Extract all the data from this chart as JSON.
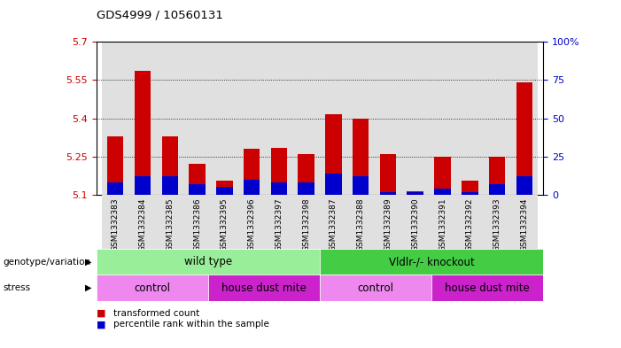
{
  "title": "GDS4999 / 10560131",
  "samples": [
    "GSM1332383",
    "GSM1332384",
    "GSM1332385",
    "GSM1332386",
    "GSM1332395",
    "GSM1332396",
    "GSM1332397",
    "GSM1332398",
    "GSM1332387",
    "GSM1332388",
    "GSM1332389",
    "GSM1332390",
    "GSM1332391",
    "GSM1332392",
    "GSM1332393",
    "GSM1332394"
  ],
  "red_values": [
    5.33,
    5.585,
    5.33,
    5.22,
    5.155,
    5.28,
    5.285,
    5.26,
    5.415,
    5.4,
    5.26,
    5.115,
    5.25,
    5.155,
    5.25,
    5.54
  ],
  "blue_percentiles": [
    8,
    12,
    12,
    7,
    5,
    10,
    8,
    8,
    14,
    12,
    2,
    2,
    4,
    2,
    7,
    12
  ],
  "ymin": 5.1,
  "ymax": 5.7,
  "yticks": [
    5.1,
    5.25,
    5.4,
    5.55,
    5.7
  ],
  "ytick_labels": [
    "5.1",
    "5.25",
    "5.4",
    "5.55",
    "5.7"
  ],
  "right_yticks": [
    0,
    25,
    50,
    75,
    100
  ],
  "right_ytick_labels": [
    "0",
    "25",
    "50",
    "75",
    "100%"
  ],
  "bar_width": 0.6,
  "red_color": "#cc0000",
  "blue_color": "#0000cc",
  "col_bg_even": "#e0e0e0",
  "col_bg_odd": "#e0e0e0",
  "plot_bg": "#ffffff",
  "genotype_groups": [
    {
      "label": "wild type",
      "start": 0,
      "end": 8,
      "color": "#99ee99"
    },
    {
      "label": "Vldlr-/- knockout",
      "start": 8,
      "end": 16,
      "color": "#44cc44"
    }
  ],
  "stress_groups": [
    {
      "label": "control",
      "start": 0,
      "end": 4,
      "color": "#ee88ee"
    },
    {
      "label": "house dust mite",
      "start": 4,
      "end": 8,
      "color": "#cc22cc"
    },
    {
      "label": "control",
      "start": 8,
      "end": 12,
      "color": "#ee88ee"
    },
    {
      "label": "house dust mite",
      "start": 12,
      "end": 16,
      "color": "#cc22cc"
    }
  ],
  "genotype_label": "genotype/variation",
  "stress_label": "stress",
  "legend_red": "transformed count",
  "legend_blue": "percentile rank within the sample"
}
